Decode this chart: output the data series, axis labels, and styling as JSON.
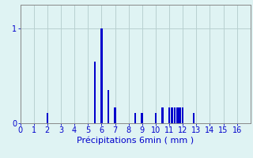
{
  "xlabel": "Précipitations 6min ( mm )",
  "xlim": [
    0,
    17
  ],
  "ylim": [
    0,
    1.25
  ],
  "yticks": [
    0,
    1
  ],
  "xticks": [
    0,
    1,
    2,
    3,
    4,
    5,
    6,
    7,
    8,
    9,
    10,
    11,
    12,
    13,
    14,
    15,
    16
  ],
  "bar_positions": [
    2.0,
    5.5,
    6.0,
    6.5,
    7.0,
    8.5,
    9.0,
    10.0,
    10.5,
    11.0,
    11.2,
    11.4,
    11.6,
    11.8,
    12.0,
    12.8
  ],
  "bar_heights": [
    0.11,
    0.65,
    1.0,
    0.35,
    0.17,
    0.11,
    0.11,
    0.11,
    0.17,
    0.17,
    0.17,
    0.17,
    0.17,
    0.17,
    0.17,
    0.11
  ],
  "bar_width": 0.15,
  "bar_color": "#0000cc",
  "background_color": "#dff3f3",
  "grid_color": "#b8d0d0",
  "axis_color": "#888888",
  "text_color": "#0000cc",
  "xlabel_fontsize": 8,
  "tick_fontsize": 7
}
